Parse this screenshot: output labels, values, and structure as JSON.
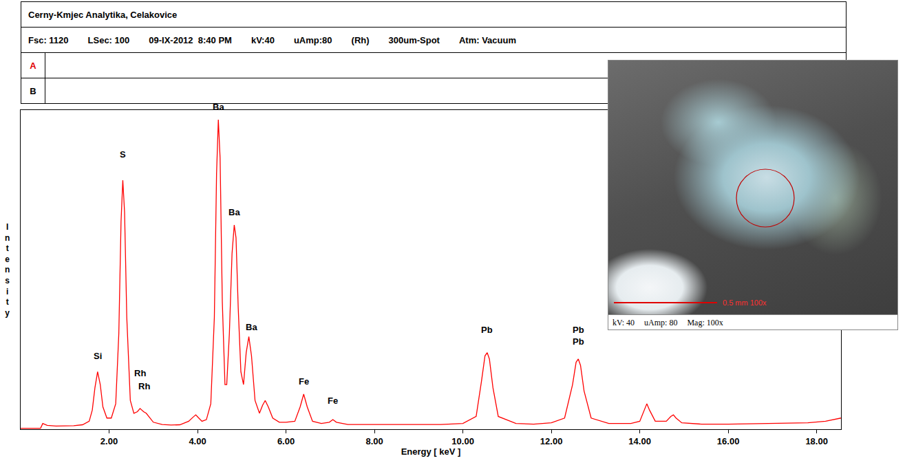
{
  "header": {
    "lab": "Cerny-Kmjec Analytika, Celakovice",
    "fields": [
      "Fsc: 1120",
      "LSec: 100",
      "09-IX-2012  8:40 PM",
      "kV:40",
      "uAmp:80",
      "(Rh)",
      "300um-Spot",
      "Atm: Vacuum"
    ],
    "rows": [
      "A",
      "B"
    ]
  },
  "inset": {
    "caption": [
      "kV: 40",
      "uAmp: 80",
      "Mag: 100x"
    ],
    "scale_label": "0.5 mm 100x"
  },
  "chart_data": {
    "type": "line",
    "x_label": "Energy [ keV ]",
    "y_label": "Intensity",
    "x": [
      0,
      0.45,
      0.5,
      0.55,
      0.6,
      0.8,
      1.0,
      1.2,
      1.4,
      1.55,
      1.62,
      1.68,
      1.74,
      1.8,
      1.86,
      1.95,
      2.05,
      2.15,
      2.22,
      2.27,
      2.31,
      2.35,
      2.4,
      2.48,
      2.56,
      2.64,
      2.7,
      2.78,
      2.84,
      2.92,
      3.0,
      3.2,
      3.4,
      3.6,
      3.8,
      3.9,
      3.96,
      4.02,
      4.1,
      4.2,
      4.3,
      4.38,
      4.43,
      4.47,
      4.51,
      4.56,
      4.62,
      4.66,
      4.72,
      4.78,
      4.83,
      4.87,
      4.92,
      4.98,
      5.04,
      5.1,
      5.16,
      5.22,
      5.3,
      5.4,
      5.47,
      5.53,
      5.6,
      5.7,
      5.85,
      6.0,
      6.2,
      6.32,
      6.4,
      6.48,
      6.6,
      6.8,
      6.98,
      7.06,
      7.14,
      7.4,
      7.8,
      8.2,
      8.6,
      9.0,
      9.5,
      10.0,
      10.3,
      10.42,
      10.5,
      10.55,
      10.6,
      10.68,
      10.8,
      11.2,
      11.6,
      12.0,
      12.3,
      12.48,
      12.56,
      12.61,
      12.66,
      12.74,
      12.9,
      13.3,
      13.8,
      14.0,
      14.1,
      14.16,
      14.22,
      14.35,
      14.6,
      14.7,
      14.76,
      14.82,
      14.95,
      15.4,
      16.0,
      16.6,
      17.2,
      17.8,
      18.2,
      18.55
    ],
    "values": [
      0.3,
      0.3,
      1.8,
      1.5,
      1.2,
      1.0,
      1.0,
      1.1,
      1.4,
      2.5,
      6,
      13,
      18,
      14,
      7,
      3.5,
      3.5,
      8,
      30,
      65,
      78,
      68,
      35,
      9,
      5,
      5.5,
      6.5,
      5.5,
      5,
      3.5,
      2.2,
      1.5,
      1.3,
      1.4,
      2.5,
      3.8,
      4.5,
      3.6,
      2.5,
      3,
      8,
      35,
      80,
      97,
      85,
      40,
      14,
      14,
      30,
      55,
      64,
      60,
      38,
      18,
      14,
      24,
      29,
      23,
      9,
      5,
      7.5,
      9,
      7,
      3.5,
      2.2,
      2.2,
      2.5,
      7,
      11,
      7,
      2.5,
      1.8,
      2.2,
      3,
      2.2,
      1.5,
      1.5,
      1.5,
      1.6,
      1.5,
      1.5,
      1.8,
      4,
      15,
      23,
      24,
      22,
      13,
      4,
      1.8,
      1.6,
      2,
      3.5,
      14,
      21,
      22,
      20,
      12,
      3.5,
      1.8,
      1.8,
      2.5,
      6,
      8,
      6,
      2.5,
      2.5,
      4,
      4.5,
      3.5,
      2,
      1.6,
      1.6,
      1.7,
      1.8,
      2,
      2.5,
      3.5
    ],
    "color": "#ff0000",
    "line_style": "solid",
    "marker": "none",
    "xlim": [
      0,
      18.55
    ],
    "xticks": [
      {
        "value": 2,
        "label": "2.00"
      },
      {
        "value": 4,
        "label": "4.00"
      },
      {
        "value": 6,
        "label": "6.00"
      },
      {
        "value": 8,
        "label": "8.00"
      },
      {
        "value": 10,
        "label": "10.00"
      },
      {
        "value": 12,
        "label": "12.00"
      },
      {
        "value": 14,
        "label": "14.00"
      },
      {
        "value": 16,
        "label": "16.00"
      },
      {
        "value": 18,
        "label": "18.00"
      }
    ],
    "ylim": [
      0,
      100
    ],
    "tick_labels": "x",
    "grid": false,
    "annotations": [
      {
        "text": "Si",
        "x": 1.74,
        "y": 21
      },
      {
        "text": "S",
        "x": 2.31,
        "y": 84
      },
      {
        "text": "Rh",
        "x": 2.7,
        "y": 15.5
      },
      {
        "text": "Rh",
        "x": 2.8,
        "y": 11.5
      },
      {
        "text": "Ba",
        "x": 4.47,
        "y": 99
      },
      {
        "text": "Ba",
        "x": 4.83,
        "y": 66
      },
      {
        "text": "Ba",
        "x": 5.22,
        "y": 30
      },
      {
        "text": "Fe",
        "x": 6.4,
        "y": 13
      },
      {
        "text": "Fe",
        "x": 7.06,
        "y": 7
      },
      {
        "text": "Pb",
        "x": 10.55,
        "y": 29
      },
      {
        "text": "Pb",
        "x": 12.61,
        "y": 29
      },
      {
        "text": "Pb",
        "x": 12.61,
        "y": 25.5
      }
    ]
  }
}
